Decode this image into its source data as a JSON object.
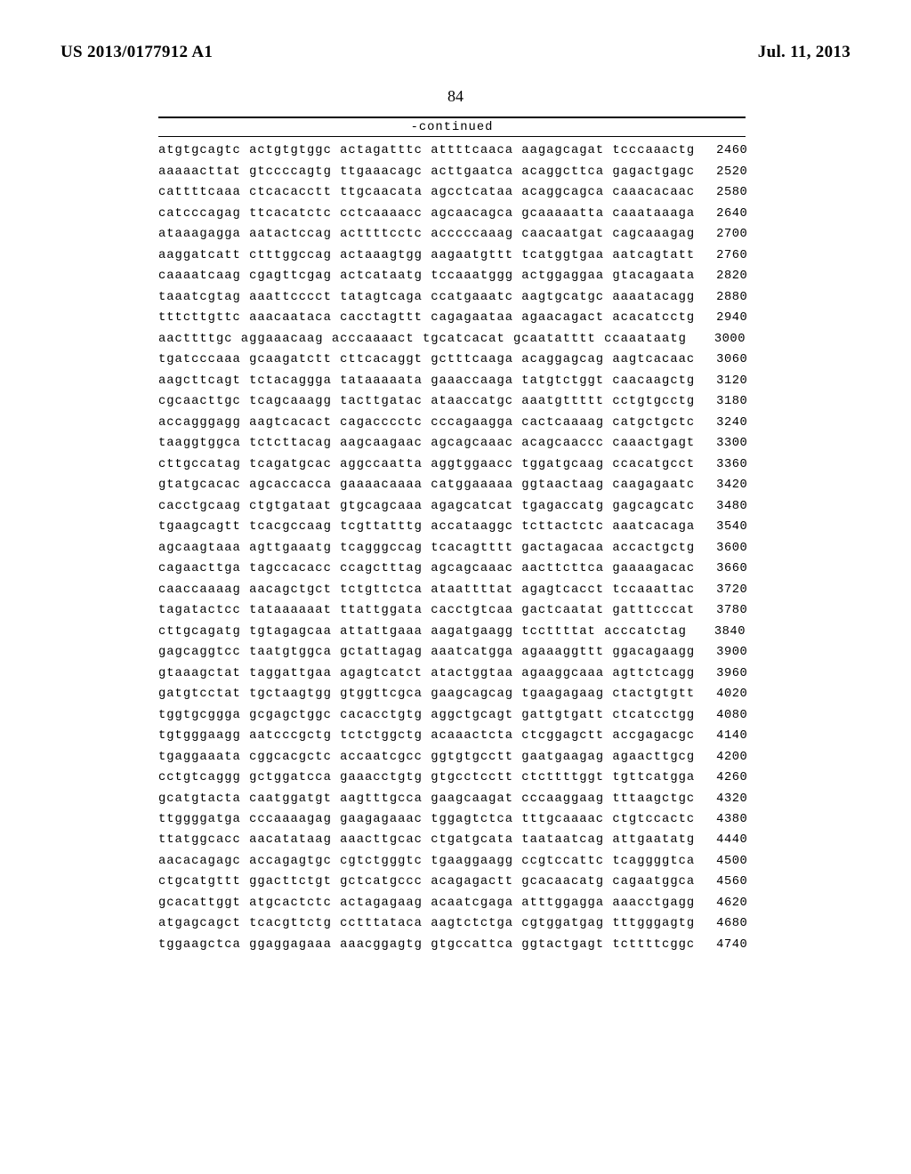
{
  "header_left": "US 2013/0177912 A1",
  "header_right": "Jul. 11, 2013",
  "page_number": "84",
  "continued_label": "-continued",
  "seq_lines": [
    {
      "s": "atgtgcagtc actgtgtggc actagatttc attttcaaca aagagcagat tcccaaactg",
      "n": "2460"
    },
    {
      "s": "aaaaacttat gtccccagtg ttgaaacagc acttgaatca acaggcttca gagactgagc",
      "n": "2520"
    },
    {
      "s": "cattttcaaa ctcacacctt ttgcaacata agcctcataa acaggcagca caaacacaac",
      "n": "2580"
    },
    {
      "s": "catcccagag ttcacatctc cctcaaaacc agcaacagca gcaaaaatta caaataaaga",
      "n": "2640"
    },
    {
      "s": "ataaagagga aatactccag acttttcctc acccccaaag caacaatgat cagcaaagag",
      "n": "2700"
    },
    {
      "s": "aaggatcatt ctttggccag actaaagtgg aagaatgttt tcatggtgaa aatcagtatt",
      "n": "2760"
    },
    {
      "s": "caaaatcaag cgagttcgag actcataatg tccaaatggg actggaggaa gtacagaata",
      "n": "2820"
    },
    {
      "s": "taaatcgtag aaattcccct tatagtcaga ccatgaaatc aagtgcatgc aaaatacagg",
      "n": "2880"
    },
    {
      "s": "tttcttgttc aaacaataca cacctagttt cagagaataa agaacagact acacatcctg",
      "n": "2940"
    },
    {
      "s": "aacttttgc aggaaacaag acccaaaact tgcatcacat gcaatatttt ccaaataatg",
      "n": "3000"
    },
    {
      "s": "tgatcccaaa gcaagatctt cttcacaggt gctttcaaga acaggagcag aagtcacaac",
      "n": "3060"
    },
    {
      "s": "aagcttcagt tctacaggga tataaaaata gaaaccaaga tatgtctggt caacaagctg",
      "n": "3120"
    },
    {
      "s": "cgcaacttgc tcagcaaagg tacttgatac ataaccatgc aaatgttttt cctgtgcctg",
      "n": "3180"
    },
    {
      "s": "accagggagg aagtcacact cagacccctc cccagaagga cactcaaaag catgctgctc",
      "n": "3240"
    },
    {
      "s": "taaggtggca tctcttacag aagcaagaac agcagcaaac acagcaaccc caaactgagt",
      "n": "3300"
    },
    {
      "s": "cttgccatag tcagatgcac aggccaatta aggtggaacc tggatgcaag ccacatgcct",
      "n": "3360"
    },
    {
      "s": "gtatgcacac agcaccacca gaaaacaaaa catggaaaaa ggtaactaag caagagaatc",
      "n": "3420"
    },
    {
      "s": "cacctgcaag ctgtgataat gtgcagcaaa agagcatcat tgagaccatg gagcagcatc",
      "n": "3480"
    },
    {
      "s": "tgaagcagtt tcacgccaag tcgttatttg accataaggc tcttactctc aaatcacaga",
      "n": "3540"
    },
    {
      "s": "agcaagtaaa agttgaaatg tcagggccag tcacagtttt gactagacaa accactgctg",
      "n": "3600"
    },
    {
      "s": "cagaacttga tagccacacc ccagctttag agcagcaaac aacttcttca gaaaagacac",
      "n": "3660"
    },
    {
      "s": "caaccaaaag aacagctgct tctgttctca ataattttat agagtcacct tccaaattac",
      "n": "3720"
    },
    {
      "s": "tagatactcc tataaaaaat ttattggata cacctgtcaa gactcaatat gatttcccat",
      "n": "3780"
    },
    {
      "s": "cttgcagatg tgtagagcaa attattgaaa aagatgaagg tccttttat acccatctag",
      "n": "3840"
    },
    {
      "s": "gagcaggtcc taatgtggca gctattagag aaatcatgga agaaaggttt ggacagaagg",
      "n": "3900"
    },
    {
      "s": "gtaaagctat taggattgaa agagtcatct atactggtaa agaaggcaaa agttctcagg",
      "n": "3960"
    },
    {
      "s": "gatgtcctat tgctaagtgg gtggttcgca gaagcagcag tgaagagaag ctactgtgtt",
      "n": "4020"
    },
    {
      "s": "tggtgcggga gcgagctggc cacacctgtg aggctgcagt gattgtgatt ctcatcctgg",
      "n": "4080"
    },
    {
      "s": "tgtgggaagg aatcccgctg tctctggctg acaaactcta ctcggagctt accgagacgc",
      "n": "4140"
    },
    {
      "s": "tgaggaaata cggcacgctc accaatcgcc ggtgtgcctt gaatgaagag agaacttgcg",
      "n": "4200"
    },
    {
      "s": "cctgtcaggg gctggatcca gaaacctgtg gtgcctcctt ctcttttggt tgttcatgga",
      "n": "4260"
    },
    {
      "s": "gcatgtacta caatggatgt aagtttgcca gaagcaagat cccaaggaag tttaagctgc",
      "n": "4320"
    },
    {
      "s": "ttggggatga cccaaaagag gaagagaaac tggagtctca tttgcaaaac ctgtccactc",
      "n": "4380"
    },
    {
      "s": "ttatggcacc aacatataag aaacttgcac ctgatgcata taataatcag attgaatatg",
      "n": "4440"
    },
    {
      "s": "aacacagagc accagagtgc cgtctgggtc tgaaggaagg ccgtccattc tcaggggtca",
      "n": "4500"
    },
    {
      "s": "ctgcatgttt ggacttctgt gctcatgccc acagagactt gcacaacatg cagaatggca",
      "n": "4560"
    },
    {
      "s": "gcacattggt atgcactctc actagagaag acaatcgaga atttggagga aaacctgagg",
      "n": "4620"
    },
    {
      "s": "atgagcagct tcacgttctg cctttataca aagtctctga cgtggatgag tttgggagtg",
      "n": "4680"
    },
    {
      "s": "tggaagctca ggaggagaaa aaacggagtg gtgccattca ggtactgagt tcttttcggc",
      "n": "4740"
    }
  ]
}
